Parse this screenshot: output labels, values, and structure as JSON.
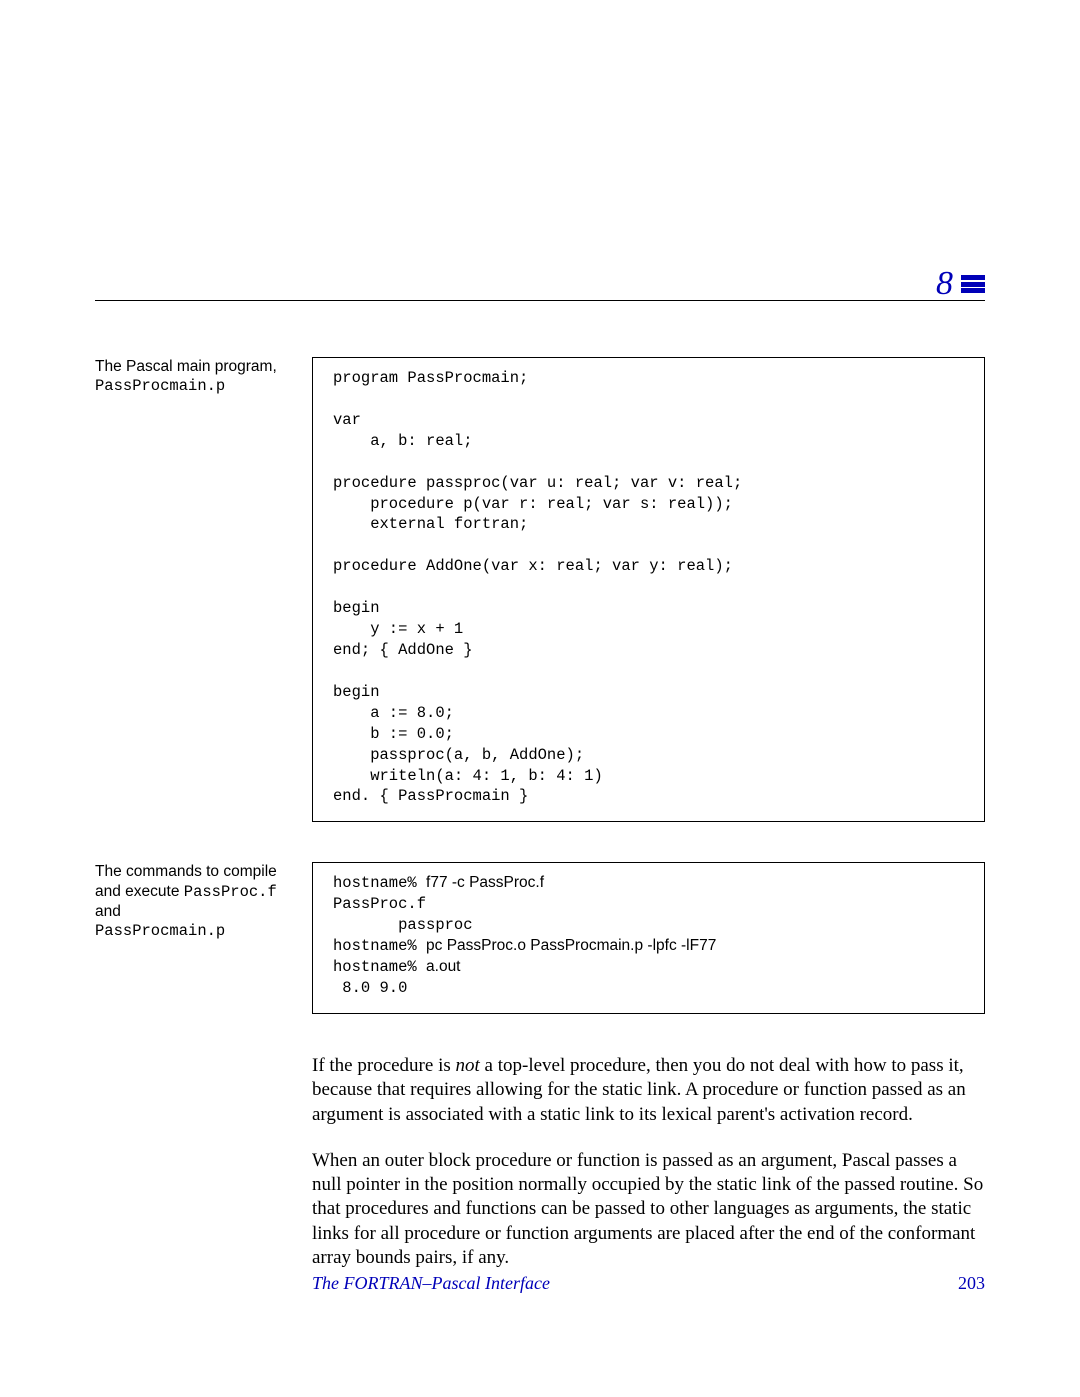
{
  "colors": {
    "text": "#000000",
    "accent": "#0000b8",
    "background": "#ffffff",
    "border": "#000000"
  },
  "typography": {
    "serif_family": "Times New Roman",
    "sans_family": "Helvetica",
    "mono_family": "Courier New",
    "body_size_pt": 14,
    "caption_size_pt": 12,
    "code_size_pt": 12,
    "chapter_number_size_pt": 26
  },
  "header": {
    "chapter_number": "8",
    "icon_name": "menu-bars-icon"
  },
  "block1": {
    "caption_text": "The Pascal main program, ",
    "caption_mono": "PassProcmain.p",
    "code": "program PassProcmain;\n\nvar\n    a, b: real;\n\nprocedure passproc(var u: real; var v: real;\n    procedure p(var r: real; var s: real));\n    external fortran;\n\nprocedure AddOne(var x: real; var y: real);\n\nbegin\n    y := x + 1\nend; { AddOne }\n\nbegin\n    a := 8.0;\n    b := 0.0;\n    passproc(a, b, AddOne);\n    writeln(a: 4: 1, b: 4: 1)\nend. { PassProcmain }"
  },
  "block2": {
    "caption_pre": "The commands to compile and execute ",
    "caption_mono1": "PassProc.f",
    "caption_mid": " and ",
    "caption_mono2": "PassProcmain.p",
    "line1_host": "hostname% ",
    "line1_cmd": "f77 -c PassProc.f",
    "line2": "PassProc.f",
    "line3": "       passproc",
    "line4_host": "hostname% ",
    "line4_cmd": "pc PassProc.o PassProcmain.p -lpfc -lF77",
    "line5_host": "hostname% ",
    "line5_cmd": "a.out",
    "line6": " 8.0 9.0"
  },
  "para1": {
    "pre": "If the procedure is ",
    "em": "not",
    "post": " a top-level procedure, then you do not deal with how to pass it, because that requires allowing for the static link.  A procedure or function passed as an argument is associated with a static link to its lexical parent's activation record."
  },
  "para2": {
    "text": "When an outer block procedure or function is passed as an argument, Pascal passes a null pointer in the position normally occupied by the static link of the passed routine.  So that procedures and functions can be passed to other languages as arguments, the static links for all procedure or function arguments are placed after the end of the conformant array bounds pairs, if any."
  },
  "footer": {
    "title": "The FORTRAN–Pascal Interface",
    "page": "203"
  }
}
